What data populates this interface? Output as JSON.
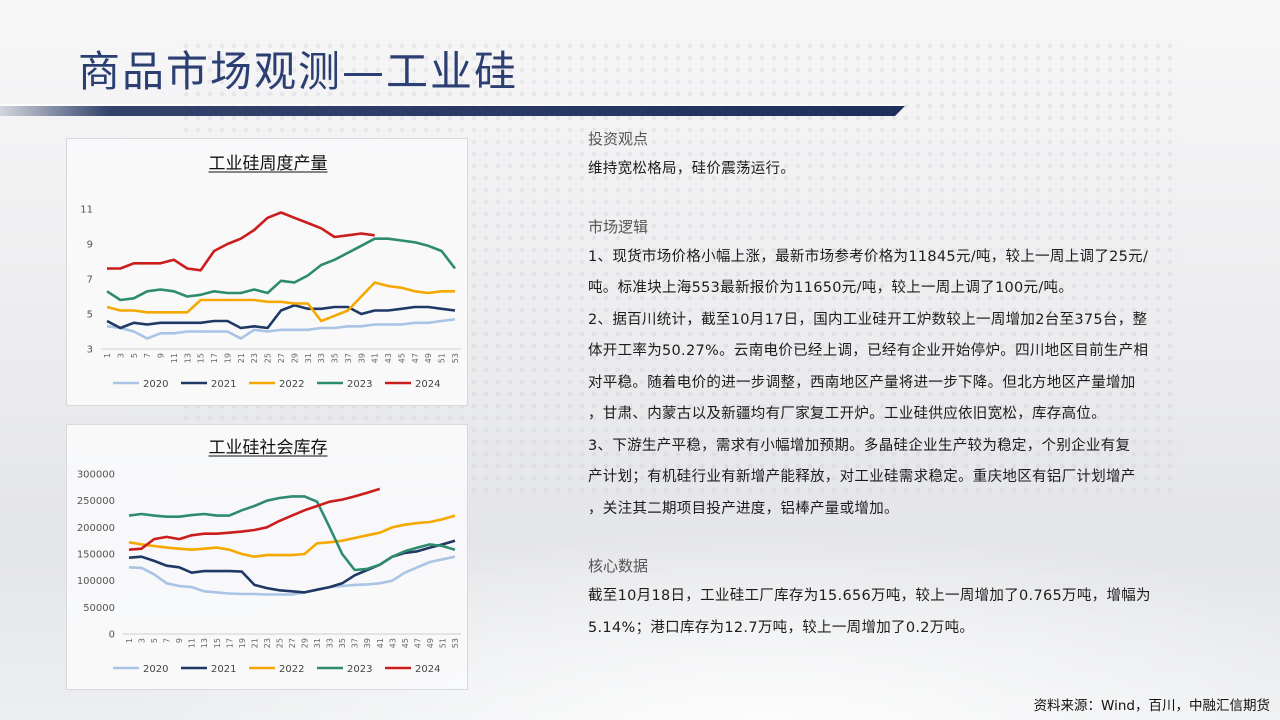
{
  "page_title": "商品市场观测—工业硅",
  "colors": {
    "title": "#2c3f72",
    "s2020": "#a9c4e4",
    "s2021": "#1f3864",
    "s2022": "#f5a800",
    "s2023": "#2e8b6d",
    "s2024": "#cc1d1d"
  },
  "invest_view": {
    "heading": "投资观点",
    "text": "维持宽松格局，硅价震荡运行。"
  },
  "market_logic": {
    "heading": "市场逻辑",
    "p1_line1": "1、现货市场价格小幅上涨，最新市场参考价格为11845元/吨，较上一周上调了25元/",
    "p1_line2": "吨。标准块上海553最新报价为11650元/吨，较上一周上调了100元/吨。",
    "p2_line1": "2、据百川统计，截至10月17日，国内工业硅开工炉数较上一周增加2台至375台，整",
    "p2_line2": "体开工率为50.27%。云南电价已经上调，已经有企业开始停炉。四川地区目前生产相",
    "p2_line3": "对平稳。随着电价的进一步调整，西南地区产量将进一步下降。但北方地区产量增加",
    "p2_line4": "，甘肃、内蒙古以及新疆均有厂家复工开炉。工业硅供应依旧宽松，库存高位。",
    "p3_line1": "3、下游生产平稳，需求有小幅增加预期。多晶硅企业生产较为稳定，个别企业有复",
    "p3_line2": "产计划；有机硅行业有新增产能释放，对工业硅需求稳定。重庆地区有铝厂计划增产",
    "p3_line3": "，关注其二期项目投产进度，铝棒产量或增加。"
  },
  "core_data": {
    "heading": "核心数据",
    "line1": "截至10月18日，工业硅工厂库存为15.656万吨，较上一周增加了0.765万吨，增幅为",
    "line2": "5.14%；港口库存为12.7万吨，较上一周增加了0.2万吨。"
  },
  "source": "资料来源：Wind，百川，中融汇信期货",
  "chart_data": [
    {
      "type": "line",
      "title": "工业硅周度产量",
      "xlabel": "",
      "ylabel": "",
      "ylim": [
        3,
        11
      ],
      "yticks": [
        "3",
        "5",
        "7",
        "9",
        "11"
      ],
      "x": [
        1,
        3,
        5,
        7,
        9,
        11,
        13,
        15,
        17,
        19,
        21,
        23,
        25,
        27,
        29,
        31,
        33,
        35,
        37,
        39,
        41,
        43,
        45,
        47,
        49,
        51,
        53
      ],
      "x_tick_labels": [
        "1",
        "3",
        "5",
        "7",
        "9",
        "11",
        "13",
        "15",
        "17",
        "19",
        "21",
        "23",
        "25",
        "27",
        "29",
        "31",
        "33",
        "35",
        "37",
        "39",
        "41",
        "43",
        "45",
        "47",
        "49",
        "51",
        "53"
      ],
      "legend_position": "bottom",
      "grid": false,
      "series": [
        {
          "name": "2020",
          "color": "#a9c4e4",
          "values": [
            4.3,
            4.2,
            4.0,
            3.6,
            3.9,
            3.9,
            4.0,
            4.0,
            4.0,
            4.0,
            3.6,
            4.1,
            4.0,
            4.1,
            4.1,
            4.1,
            4.2,
            4.2,
            4.3,
            4.3,
            4.4,
            4.4,
            4.4,
            4.5,
            4.5,
            4.6,
            4.7
          ]
        },
        {
          "name": "2021",
          "color": "#1f3864",
          "values": [
            4.6,
            4.2,
            4.5,
            4.4,
            4.5,
            4.5,
            4.5,
            4.5,
            4.6,
            4.6,
            4.2,
            4.3,
            4.2,
            5.2,
            5.5,
            5.3,
            5.3,
            5.4,
            5.4,
            5.0,
            5.2,
            5.2,
            5.3,
            5.4,
            5.4,
            5.3,
            5.2
          ]
        },
        {
          "name": "2022",
          "color": "#f5a800",
          "values": [
            5.4,
            5.2,
            5.2,
            5.1,
            5.1,
            5.1,
            5.1,
            5.8,
            5.8,
            5.8,
            5.8,
            5.8,
            5.7,
            5.7,
            5.6,
            5.6,
            4.6,
            4.9,
            5.2,
            6.0,
            6.8,
            6.6,
            6.5,
            6.3,
            6.2,
            6.3,
            6.3
          ]
        },
        {
          "name": "2023",
          "color": "#2e8b6d",
          "values": [
            6.3,
            5.8,
            5.9,
            6.3,
            6.4,
            6.3,
            6.0,
            6.1,
            6.3,
            6.2,
            6.2,
            6.4,
            6.2,
            6.9,
            6.8,
            7.2,
            7.8,
            8.1,
            8.5,
            8.9,
            9.3,
            9.3,
            9.2,
            9.1,
            8.9,
            8.6,
            7.6
          ]
        },
        {
          "name": "2024",
          "color": "#cc1d1d",
          "values": [
            7.6,
            7.6,
            7.9,
            7.9,
            7.9,
            8.1,
            7.6,
            7.5,
            8.6,
            9.0,
            9.3,
            9.8,
            10.5,
            10.8,
            10.5,
            10.2,
            9.9,
            9.4,
            9.5,
            9.6,
            9.5,
            null,
            null,
            null,
            null,
            null,
            null
          ]
        }
      ]
    },
    {
      "type": "line",
      "title": "工业硅社会库存",
      "xlabel": "",
      "ylabel": "",
      "ylim": [
        0,
        300000
      ],
      "yticks": [
        "0",
        "50000",
        "100000",
        "150000",
        "200000",
        "250000",
        "300000"
      ],
      "x": [
        1,
        3,
        5,
        7,
        9,
        11,
        13,
        15,
        17,
        19,
        21,
        23,
        25,
        27,
        29,
        31,
        33,
        35,
        37,
        39,
        41,
        43,
        45,
        47,
        49,
        51,
        53
      ],
      "x_tick_labels": [
        "1",
        "3",
        "5",
        "7",
        "9",
        "11",
        "13",
        "15",
        "17",
        "19",
        "21",
        "23",
        "25",
        "27",
        "29",
        "31",
        "33",
        "35",
        "37",
        "39",
        "41",
        "43",
        "45",
        "47",
        "49",
        "51",
        "53"
      ],
      "legend_position": "bottom",
      "grid": false,
      "series": [
        {
          "name": "2020",
          "color": "#a9c4e4",
          "values": [
            125000,
            124000,
            112000,
            95000,
            90000,
            88000,
            80000,
            78000,
            76000,
            75000,
            75000,
            74000,
            74000,
            74000,
            78000,
            83000,
            88000,
            90000,
            92000,
            93000,
            95000,
            100000,
            115000,
            125000,
            135000,
            140000,
            145000
          ]
        },
        {
          "name": "2021",
          "color": "#1f3864",
          "values": [
            143000,
            145000,
            137000,
            128000,
            125000,
            115000,
            118000,
            118000,
            118000,
            117000,
            92000,
            86000,
            82000,
            80000,
            78000,
            83000,
            88000,
            95000,
            110000,
            120000,
            130000,
            145000,
            152000,
            155000,
            162000,
            168000,
            175000
          ]
        },
        {
          "name": "2022",
          "color": "#f5a800",
          "values": [
            172000,
            168000,
            165000,
            162000,
            160000,
            158000,
            160000,
            162000,
            158000,
            150000,
            145000,
            148000,
            148000,
            148000,
            150000,
            170000,
            172000,
            175000,
            180000,
            185000,
            190000,
            200000,
            205000,
            208000,
            210000,
            215000,
            222000
          ]
        },
        {
          "name": "2023",
          "color": "#2e8b6d",
          "values": [
            222000,
            225000,
            222000,
            220000,
            220000,
            223000,
            225000,
            222000,
            222000,
            232000,
            240000,
            250000,
            255000,
            258000,
            258000,
            248000,
            200000,
            150000,
            120000,
            122000,
            130000,
            145000,
            155000,
            162000,
            168000,
            165000,
            158000
          ]
        },
        {
          "name": "2024",
          "color": "#cc1d1d",
          "values": [
            158000,
            160000,
            178000,
            182000,
            178000,
            185000,
            188000,
            188000,
            190000,
            192000,
            195000,
            200000,
            212000,
            222000,
            232000,
            240000,
            248000,
            252000,
            258000,
            265000,
            272000,
            null,
            null,
            null,
            null,
            null,
            null
          ]
        }
      ]
    }
  ]
}
